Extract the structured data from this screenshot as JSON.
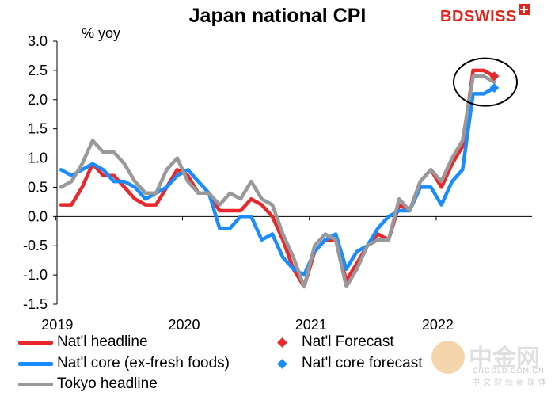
{
  "header": {
    "title": "Japan national CPI",
    "logo_text": "BDSWISS",
    "unit_label": "% yoy"
  },
  "colors": {
    "headline": "#e8282b",
    "core": "#1a8cff",
    "tokyo": "#999999",
    "highlight_ellipse": "#000000"
  },
  "legend": {
    "headline": "Nat'l headline",
    "core": "Nat'l core (ex-fresh foods)",
    "tokyo": "Tokyo headline",
    "headline_forecast": "Nat'l Forecast",
    "core_forecast": "Nat'l core forecast"
  },
  "watermark": {
    "cn_name": "中金网",
    "url": "CNGOLD.COM.CN",
    "subtitle": "中文财经新媒体"
  },
  "chart_data": {
    "type": "line",
    "xlabel": "",
    "ylabel": "% yoy",
    "ylim": [
      -1.5,
      3.0
    ],
    "yticks": [
      "3.0",
      "2.5",
      "2.0",
      "1.5",
      "1.0",
      "0.5",
      "0.0",
      "-0.5",
      "-1.0",
      "-1.5"
    ],
    "xticks": [
      "2019",
      "2020",
      "2021",
      "2022"
    ],
    "x_start": "2019-01",
    "grid": false,
    "legend_position": "bottom",
    "series": [
      {
        "name": "Nat'l headline",
        "values": [
          0.2,
          0.2,
          0.5,
          0.9,
          0.7,
          0.7,
          0.5,
          0.3,
          0.2,
          0.2,
          0.5,
          0.8,
          0.7,
          0.4,
          0.4,
          0.1,
          0.1,
          0.1,
          0.3,
          0.2,
          0.0,
          -0.4,
          -0.9,
          -1.2,
          -0.6,
          -0.4,
          -0.4,
          -1.1,
          -0.8,
          -0.5,
          -0.3,
          -0.4,
          0.2,
          0.1,
          0.6,
          0.8,
          0.5,
          0.9,
          1.2,
          2.5,
          2.5,
          2.4
        ]
      },
      {
        "name": "Nat'l core (ex-fresh foods)",
        "values": [
          0.8,
          0.7,
          0.8,
          0.9,
          0.8,
          0.6,
          0.6,
          0.5,
          0.3,
          0.4,
          0.5,
          0.7,
          0.8,
          0.6,
          0.4,
          -0.2,
          -0.2,
          0.0,
          0.0,
          -0.4,
          -0.3,
          -0.7,
          -0.9,
          -1.0,
          -0.6,
          -0.4,
          -0.3,
          -0.9,
          -0.6,
          -0.5,
          -0.2,
          0.0,
          0.1,
          0.1,
          0.5,
          0.5,
          0.2,
          0.6,
          0.8,
          2.1,
          2.1,
          2.2
        ]
      },
      {
        "name": "Tokyo headline",
        "values": [
          0.5,
          0.6,
          0.9,
          1.3,
          1.1,
          1.1,
          0.9,
          0.6,
          0.4,
          0.4,
          0.8,
          1.0,
          0.6,
          0.4,
          0.4,
          0.2,
          0.4,
          0.3,
          0.6,
          0.3,
          0.2,
          -0.3,
          -0.7,
          -1.2,
          -0.5,
          -0.3,
          -0.4,
          -1.2,
          -0.9,
          -0.5,
          -0.4,
          -0.4,
          0.3,
          0.1,
          0.6,
          0.8,
          0.6,
          1.0,
          1.3,
          2.4,
          2.4,
          2.3
        ]
      }
    ],
    "forecasts": [
      {
        "name": "Nat'l Forecast",
        "x_index": 41,
        "value": 2.4
      },
      {
        "name": "Nat'l core forecast",
        "x_index": 41,
        "value": 2.2
      }
    ],
    "annotation": {
      "type": "ellipse",
      "target": "latest readings and forecasts"
    }
  }
}
